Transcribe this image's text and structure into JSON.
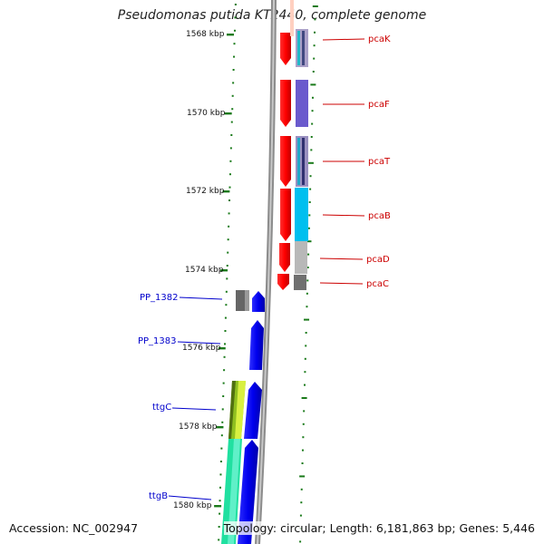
{
  "title": "Pseudomonas putida KT2440, complete genome",
  "footer": {
    "accession": "Accession: NC_002947",
    "summary": "Topology: circular; Length: 6,181,863 bp; Genes: 5,446"
  },
  "ticks": [
    {
      "label": "1568 kbp"
    },
    {
      "label": "1570 kbp"
    },
    {
      "label": "1572 kbp"
    },
    {
      "label": "1574 kbp"
    },
    {
      "label": "1576 kbp"
    },
    {
      "label": "1578 kbp"
    },
    {
      "label": "1580 kbp"
    }
  ],
  "genes_right": [
    {
      "label": "pcaK",
      "color": "#cc0000"
    },
    {
      "label": "pcaF",
      "color": "#cc0000"
    },
    {
      "label": "pcaT",
      "color": "#cc0000"
    },
    {
      "label": "pcaB",
      "color": "#cc0000"
    },
    {
      "label": "pcaD",
      "color": "#cc0000"
    },
    {
      "label": "pcaC",
      "color": "#cc0000"
    }
  ],
  "genes_left": [
    {
      "label": "PP_1382",
      "color": "#0000cc"
    },
    {
      "label": "PP_1383",
      "color": "#0000cc"
    },
    {
      "label": "ttgC",
      "color": "#0000cc"
    },
    {
      "label": "ttgB",
      "color": "#0000cc"
    }
  ]
}
